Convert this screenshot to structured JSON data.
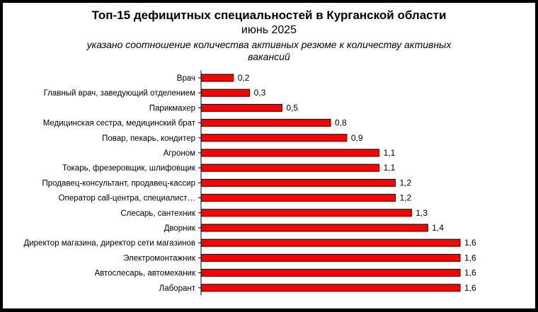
{
  "chart_data": {
    "type": "bar",
    "orientation": "horizontal",
    "title": "Топ-15 дефицитных специальностей в Курганской области",
    "subtitle": "июнь 2025",
    "note": "указано соотношение количества активных резюме к количеству активных вакансий",
    "categories": [
      "Врач",
      "Главный врач, заведующий отделением",
      "Парикмахер",
      "Медицинская сестра, медицинский брат",
      "Повар, пекарь, кондитер",
      "Агроном",
      "Токарь, фрезеровщик, шлифовщик",
      "Продавец-консультант, продавец-кассир",
      "Оператор call-центра, специалист…",
      "Слесарь, сантехник",
      "Дворник",
      "Директор магазина, директор сети магазинов",
      "Электромонтажник",
      "Автослесарь, автомеханик",
      "Лаборант"
    ],
    "values": [
      0.2,
      0.3,
      0.5,
      0.8,
      0.9,
      1.1,
      1.1,
      1.2,
      1.2,
      1.3,
      1.4,
      1.6,
      1.6,
      1.6,
      1.6
    ],
    "value_labels": [
      "0,2",
      "0,3",
      "0,5",
      "0,8",
      "0,9",
      "1,1",
      "1,1",
      "1,2",
      "1,2",
      "1,3",
      "1,4",
      "1,6",
      "1,6",
      "1,6",
      "1,6"
    ],
    "xlim": [
      0,
      1.6
    ],
    "grid": false,
    "legend": "none",
    "bar_color": "#ff0000",
    "bar_border_color": "#000000"
  }
}
